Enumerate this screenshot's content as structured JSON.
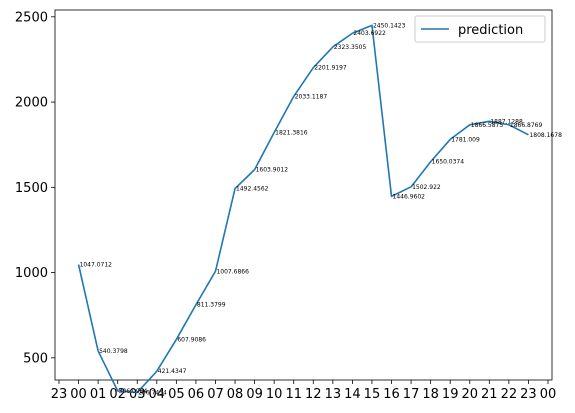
{
  "chart_data": {
    "type": "line",
    "title": "",
    "xlabel": "",
    "ylabel": "",
    "x_tick_labels": [
      "23",
      "00",
      "01",
      "02",
      "03",
      "04",
      "05",
      "06",
      "07",
      "08",
      "09",
      "10",
      "11",
      "12",
      "13",
      "14",
      "15",
      "16",
      "17",
      "18",
      "19",
      "20",
      "21",
      "22",
      "23",
      "00"
    ],
    "y_ticks": [
      500,
      1000,
      1500,
      2000,
      2500
    ],
    "ylim": [
      370,
      2540
    ],
    "grid": false,
    "legend_position": "top-right",
    "line_color": "#1f77b4",
    "series": [
      {
        "name": "prediction",
        "points": [
          {
            "hour": "00",
            "value": 1047.0712,
            "label": "1047.0712"
          },
          {
            "hour": "01",
            "value": 540.3798,
            "label": "540.3798"
          },
          {
            "hour": "02",
            "value": 306.0964,
            "label": "306.0964"
          },
          {
            "hour": "03",
            "value": 296.7454,
            "label": "296.7454"
          },
          {
            "hour": "04",
            "value": 421.4347,
            "label": "421.4347"
          },
          {
            "hour": "05",
            "value": 607.9086,
            "label": "607.9086"
          },
          {
            "hour": "06",
            "value": 811.3799,
            "label": "811.3799"
          },
          {
            "hour": "07",
            "value": 1007.6866,
            "label": "1007.6866"
          },
          {
            "hour": "08",
            "value": 1492.4562,
            "label": "1492.4562"
          },
          {
            "hour": "09",
            "value": 1603.9012,
            "label": "1603.9012"
          },
          {
            "hour": "10",
            "value": 1821.3816,
            "label": "1821.3816"
          },
          {
            "hour": "11",
            "value": 2033.1187,
            "label": "2033.1187"
          },
          {
            "hour": "12",
            "value": 2201.9197,
            "label": "2201.9197"
          },
          {
            "hour": "13",
            "value": 2323.3505,
            "label": "2323.3505"
          },
          {
            "hour": "14",
            "value": 2403.6922,
            "label": "2403.6922"
          },
          {
            "hour": "15",
            "value": 2450.1423,
            "label": "2450.1423"
          },
          {
            "hour": "16",
            "value": 1446.9602,
            "label": "1446.9602"
          },
          {
            "hour": "17",
            "value": 1502.922,
            "label": "1502.922"
          },
          {
            "hour": "18",
            "value": 1650.0374,
            "label": "1650.0374"
          },
          {
            "hour": "19",
            "value": 1781.009,
            "label": "1781.009"
          },
          {
            "hour": "20",
            "value": 1866.5875,
            "label": "1866.5875"
          },
          {
            "hour": "21",
            "value": 1887.1288,
            "label": "1887.1288"
          },
          {
            "hour": "22",
            "value": 1866.8769,
            "label": "1866.8769"
          },
          {
            "hour": "23",
            "value": 1808.1678,
            "label": "1808.1678"
          }
        ]
      }
    ]
  }
}
